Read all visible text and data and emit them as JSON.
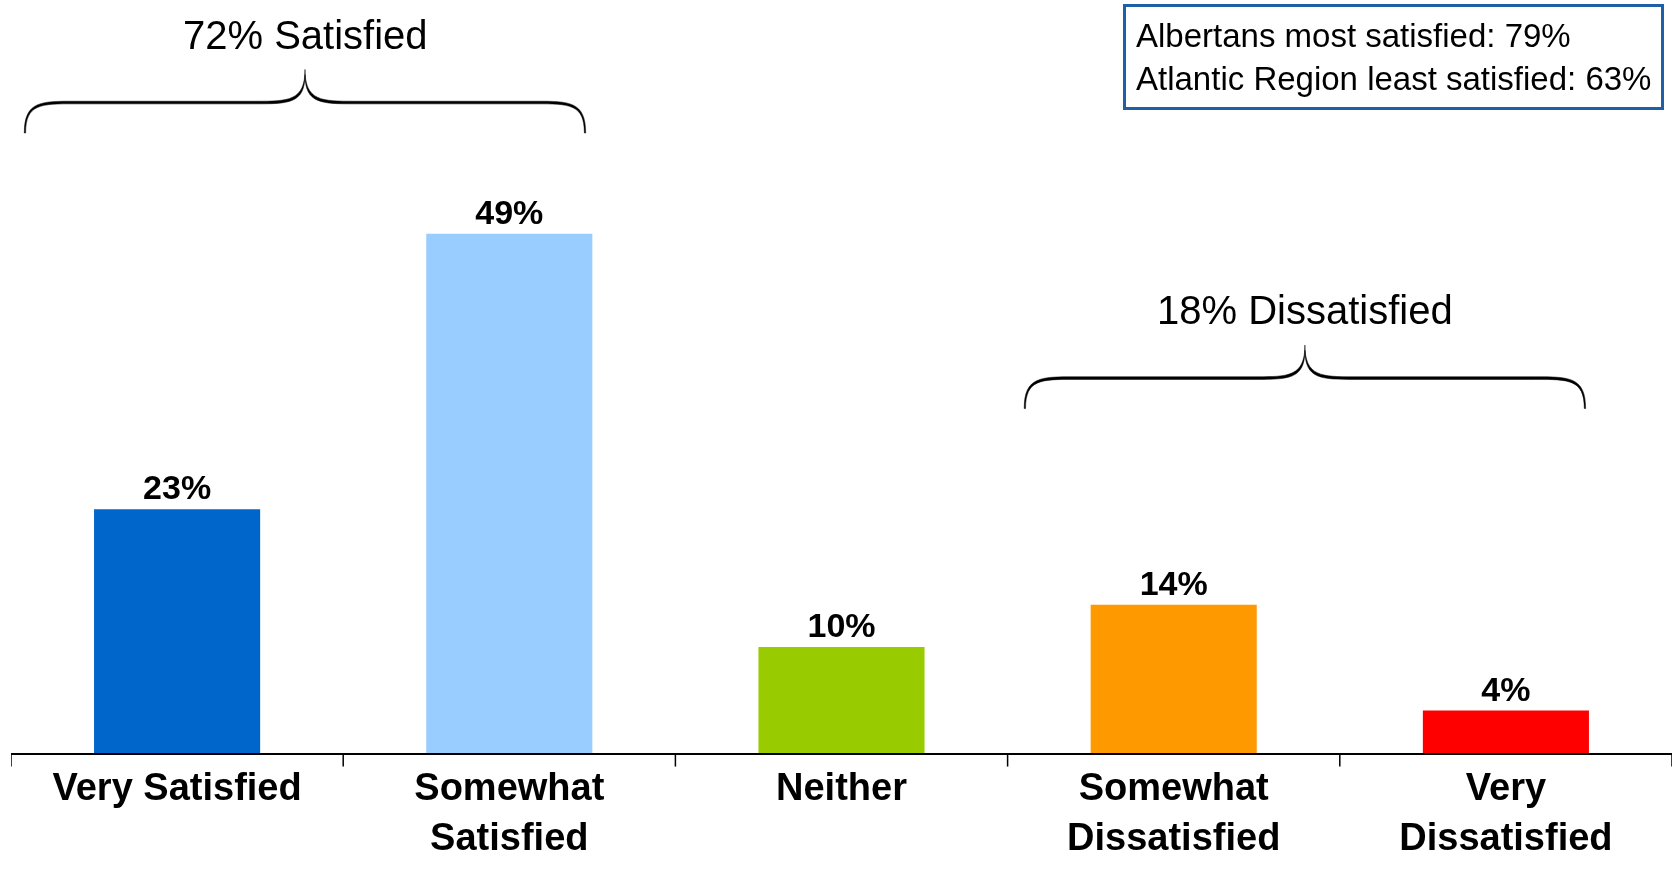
{
  "chart_data": {
    "type": "bar",
    "categories": [
      "Very Satisfied",
      "Somewhat\nSatisfied",
      "Neither",
      "Somewhat\nDissatisfied",
      "Very\nDissatisfied"
    ],
    "values": [
      23,
      49,
      10,
      14,
      4
    ],
    "colors": [
      "#0066cc",
      "#99ccff",
      "#99cc00",
      "#ff9900",
      "#ff0000"
    ],
    "value_labels": [
      "23%",
      "49%",
      "10%",
      "14%",
      "4%"
    ],
    "tick_labels": "x",
    "annotations": [
      "72% Satisfied",
      "18% Dissatisfied",
      "Albertans most satisfied: 79%\nAtlantic Region least satisfied: 63%"
    ]
  }
}
